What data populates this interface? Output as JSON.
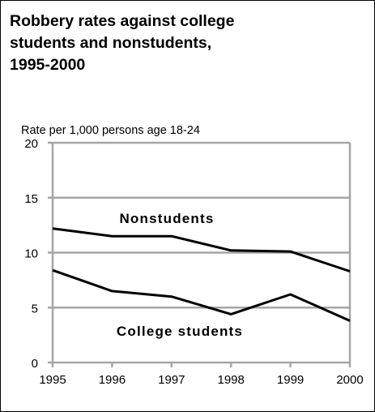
{
  "chart_data": {
    "type": "line",
    "title": "Robbery rates against college\nstudents and nonstudents,\n1995-2000",
    "ylabel": "Rate per 1,000 persons age 18-24",
    "xlabel": "",
    "x": [
      1995,
      1996,
      1997,
      1998,
      1999,
      2000
    ],
    "x_tick_labels": [
      "1995",
      "1996",
      "1997",
      "1998",
      "1999",
      "2000"
    ],
    "y_ticks": [
      0,
      5,
      10,
      15,
      20
    ],
    "y_tick_labels": [
      "0",
      "5",
      "10",
      "15",
      "20"
    ],
    "ylim": [
      0,
      20
    ],
    "grid": true,
    "legend": "inline labels",
    "series": [
      {
        "name": "Nonstudents",
        "values": [
          12.2,
          11.5,
          11.5,
          10.2,
          10.1,
          8.3
        ]
      },
      {
        "name": "College students",
        "values": [
          8.4,
          6.5,
          6.0,
          4.4,
          6.2,
          3.8
        ]
      }
    ],
    "colors": {
      "line": "#000000",
      "grid": "#a6a6a6",
      "axis": "#a6a6a6",
      "text": "#000000"
    }
  }
}
